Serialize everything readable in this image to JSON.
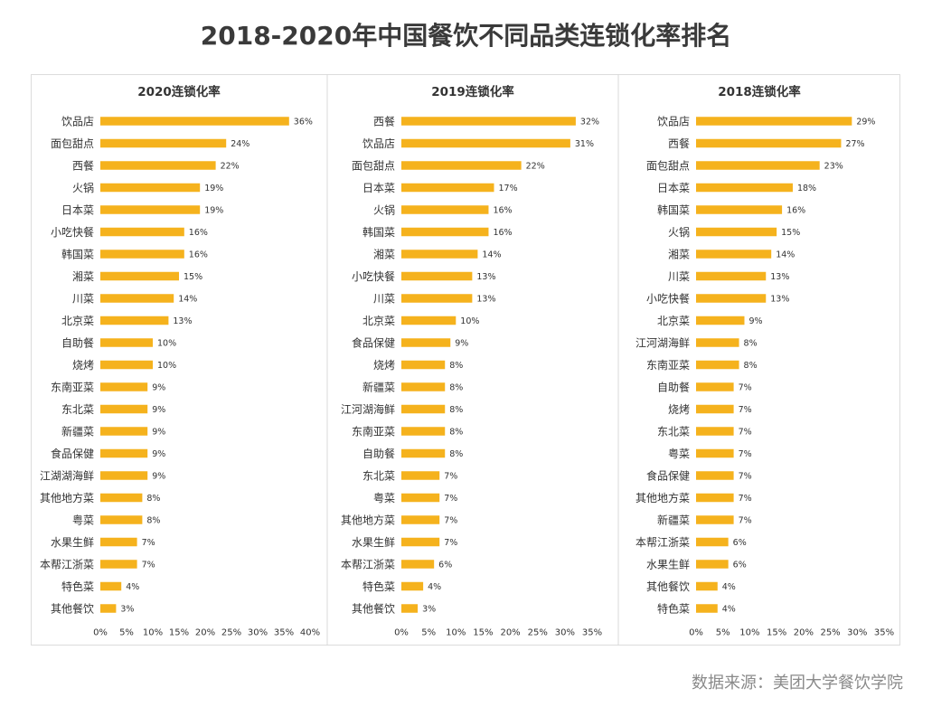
{
  "title": "2018-2020年中国餐饮不同品类连锁化率排名",
  "source": "数据来源：美团大学餐饮学院",
  "colors": {
    "bar": "#F5B21D",
    "text": "#333333",
    "divider": "#d9d9d9"
  },
  "chart_data": [
    {
      "type": "bar",
      "orientation": "horizontal",
      "title": "2020连锁化率",
      "xlim": [
        0,
        40
      ],
      "xticks": [
        "0%",
        "5%",
        "10%",
        "15%",
        "20%",
        "25%",
        "30%",
        "35%",
        "40%"
      ],
      "xtick_values": [
        0,
        5,
        10,
        15,
        20,
        25,
        30,
        35,
        40
      ],
      "categories": [
        "饮品店",
        "面包甜点",
        "西餐",
        "火锅",
        "日本菜",
        "小吃快餐",
        "韩国菜",
        "湘菜",
        "川菜",
        "北京菜",
        "自助餐",
        "烧烤",
        "东南亚菜",
        "东北菜",
        "新疆菜",
        "食品保健",
        "江湖湖海鲜",
        "其他地方菜",
        "粤菜",
        "水果生鲜",
        "本帮江浙菜",
        "特色菜",
        "其他餐饮"
      ],
      "values": [
        36,
        24,
        22,
        19,
        19,
        16,
        16,
        15,
        14,
        13,
        10,
        10,
        9,
        9,
        9,
        9,
        9,
        8,
        8,
        7,
        7,
        4,
        3
      ],
      "labels": [
        "36%",
        "24%",
        "22%",
        "19%",
        "19%",
        "16%",
        "16%",
        "15%",
        "14%",
        "13%",
        "10%",
        "10%",
        "9%",
        "9%",
        "9%",
        "9%",
        "9%",
        "8%",
        "8%",
        "7%",
        "7%",
        "4%",
        "3%"
      ]
    },
    {
      "type": "bar",
      "orientation": "horizontal",
      "title": "2019连锁化率",
      "xlim": [
        0,
        35
      ],
      "xticks": [
        "0%",
        "5%",
        "10%",
        "15%",
        "20%",
        "25%",
        "30%",
        "35%"
      ],
      "xtick_values": [
        0,
        5,
        10,
        15,
        20,
        25,
        30,
        35
      ],
      "categories": [
        "西餐",
        "饮品店",
        "面包甜点",
        "日本菜",
        "火锅",
        "韩国菜",
        "湘菜",
        "小吃快餐",
        "川菜",
        "北京菜",
        "食品保健",
        "烧烤",
        "新疆菜",
        "江河湖海鲜",
        "东南亚菜",
        "自助餐",
        "东北菜",
        "粤菜",
        "其他地方菜",
        "水果生鲜",
        "本帮江浙菜",
        "特色菜",
        "其他餐饮"
      ],
      "values": [
        32,
        31,
        22,
        17,
        16,
        16,
        14,
        13,
        13,
        10,
        9,
        8,
        8,
        8,
        8,
        8,
        7,
        7,
        7,
        7,
        6,
        4,
        3
      ],
      "labels": [
        "32%",
        "31%",
        "22%",
        "17%",
        "16%",
        "16%",
        "14%",
        "13%",
        "13%",
        "10%",
        "9%",
        "8%",
        "8%",
        "8%",
        "8%",
        "8%",
        "7%",
        "7%",
        "7%",
        "7%",
        "6%",
        "4%",
        "3%"
      ]
    },
    {
      "type": "bar",
      "orientation": "horizontal",
      "title": "2018连锁化率",
      "xlim": [
        0,
        35
      ],
      "xticks": [
        "0%",
        "5%",
        "10%",
        "15%",
        "20%",
        "25%",
        "30%",
        "35%"
      ],
      "xtick_values": [
        0,
        5,
        10,
        15,
        20,
        25,
        30,
        35
      ],
      "categories": [
        "饮品店",
        "西餐",
        "面包甜点",
        "日本菜",
        "韩国菜",
        "火锅",
        "湘菜",
        "川菜",
        "小吃快餐",
        "北京菜",
        "江河湖海鲜",
        "东南亚菜",
        "自助餐",
        "烧烤",
        "东北菜",
        "粤菜",
        "食品保健",
        "其他地方菜",
        "新疆菜",
        "本帮江浙菜",
        "水果生鲜",
        "其他餐饮",
        "特色菜"
      ],
      "values": [
        29,
        27,
        23,
        18,
        16,
        15,
        14,
        13,
        13,
        9,
        8,
        8,
        7,
        7,
        7,
        7,
        7,
        7,
        7,
        6,
        6,
        4,
        4
      ],
      "labels": [
        "29%",
        "27%",
        "23%",
        "18%",
        "16%",
        "15%",
        "14%",
        "13%",
        "13%",
        "9%",
        "8%",
        "8%",
        "7%",
        "7%",
        "7%",
        "7%",
        "7%",
        "7%",
        "7%",
        "6%",
        "6%",
        "4%",
        "4%"
      ]
    }
  ]
}
